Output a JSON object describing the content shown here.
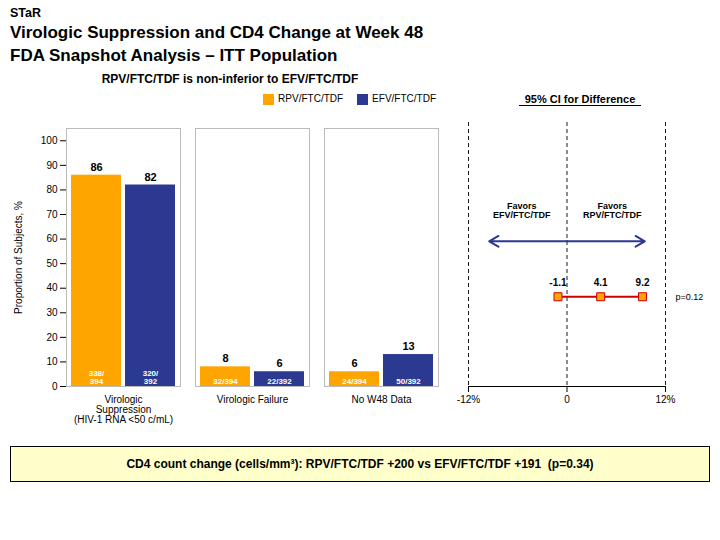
{
  "chart_data": [
    {
      "type": "bar",
      "title": [
        "STaR",
        "Virologic Suppression and CD4 Change at Week 48",
        "FDA Snapshot Analysis – ITT Population"
      ],
      "subtitle": "RPV/FTC/TDF is non-inferior to EFV/FTC/TDF",
      "categories": [
        "Virologic\nSuppression\n(HIV-1 RNA <50 c/mL)",
        "Virologic Failure",
        "No W48 Data"
      ],
      "series": [
        {
          "name": "RPV/FTC/TDF",
          "color": "#FFA500",
          "values": [
            86,
            8,
            6
          ],
          "fraction_labels": [
            "338/\n394",
            "32/394",
            "24/394"
          ]
        },
        {
          "name": "EFV/FTC/TDF",
          "color": "#2B3990",
          "values": [
            82,
            6,
            13
          ],
          "fraction_labels": [
            "320/\n392",
            "22/392",
            "50/392"
          ]
        }
      ],
      "ylabel": "Proportion of Subjects, %",
      "ylim": [
        0,
        105
      ],
      "yticks": [
        0,
        10,
        20,
        30,
        40,
        50,
        60,
        70,
        80,
        90,
        100
      ],
      "data_labels": true,
      "legend": "upper right",
      "annotations": [
        "CD4 count change (cells/mm³): RPV/FTC/TDF +200 vs EFV/FTC/TDF +191  (p=0.34)"
      ]
    },
    {
      "type": "interval",
      "title": "95% CI for Difference",
      "lower": -1.1,
      "center": 4.1,
      "upper": 9.2,
      "xlim": [
        -12,
        12
      ],
      "xticks": [
        {
          "value": -12,
          "label": "-12%"
        },
        0,
        {
          "value": 12,
          "label": "12%"
        }
      ],
      "grid": true,
      "tick_labels": "x",
      "data_labels": true,
      "marker": "square",
      "color": "#CC0000",
      "colors": [
        "#FFA500",
        "#FFA500",
        "#FFA500"
      ],
      "arrow_color": "#2B3990",
      "favors": [
        "Favors\nEFV/FTC/TDF",
        "Favors\nRPV/FTC/TDF"
      ],
      "p_value": "p=0.12"
    }
  ]
}
